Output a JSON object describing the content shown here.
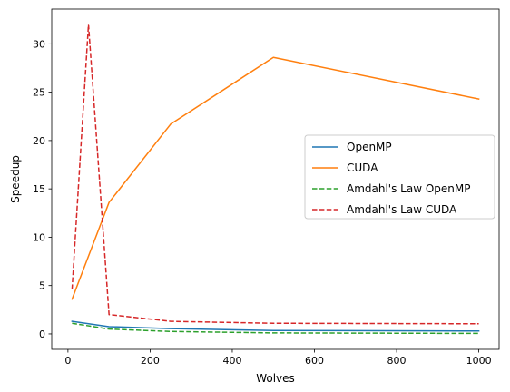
{
  "chart_data": {
    "type": "line",
    "title": "",
    "xlabel": "Wolves",
    "ylabel": "Speedup",
    "xlim": [
      -39.5,
      1049.5
    ],
    "ylim": [
      -1.6,
      33.6
    ],
    "xticks": [
      0,
      200,
      400,
      600,
      800,
      1000
    ],
    "yticks": [
      0,
      5,
      10,
      15,
      20,
      25,
      30
    ],
    "grid": false,
    "legend_position": "center-right",
    "series": [
      {
        "name": "OpenMP",
        "color": "#1f77b4",
        "dash": "solid",
        "x": [
          10,
          100,
          250,
          500,
          1000
        ],
        "y": [
          1.3,
          0.75,
          0.55,
          0.35,
          0.3
        ]
      },
      {
        "name": "CUDA",
        "color": "#ff7f0e",
        "dash": "solid",
        "x": [
          10,
          100,
          250,
          500,
          1000
        ],
        "y": [
          3.6,
          13.6,
          21.7,
          28.6,
          24.3
        ]
      },
      {
        "name": "Amdahl's Law OpenMP",
        "color": "#2ca02c",
        "dash": "dashed",
        "x": [
          10,
          100,
          250,
          500,
          1000
        ],
        "y": [
          1.1,
          0.5,
          0.25,
          0.1,
          0.05
        ]
      },
      {
        "name": "Amdahl's Law CUDA",
        "color": "#d62728",
        "dash": "dashed",
        "x": [
          10,
          50,
          100,
          250,
          500,
          1000
        ],
        "y": [
          4.6,
          32.0,
          2.0,
          1.3,
          1.1,
          1.05
        ]
      }
    ]
  }
}
